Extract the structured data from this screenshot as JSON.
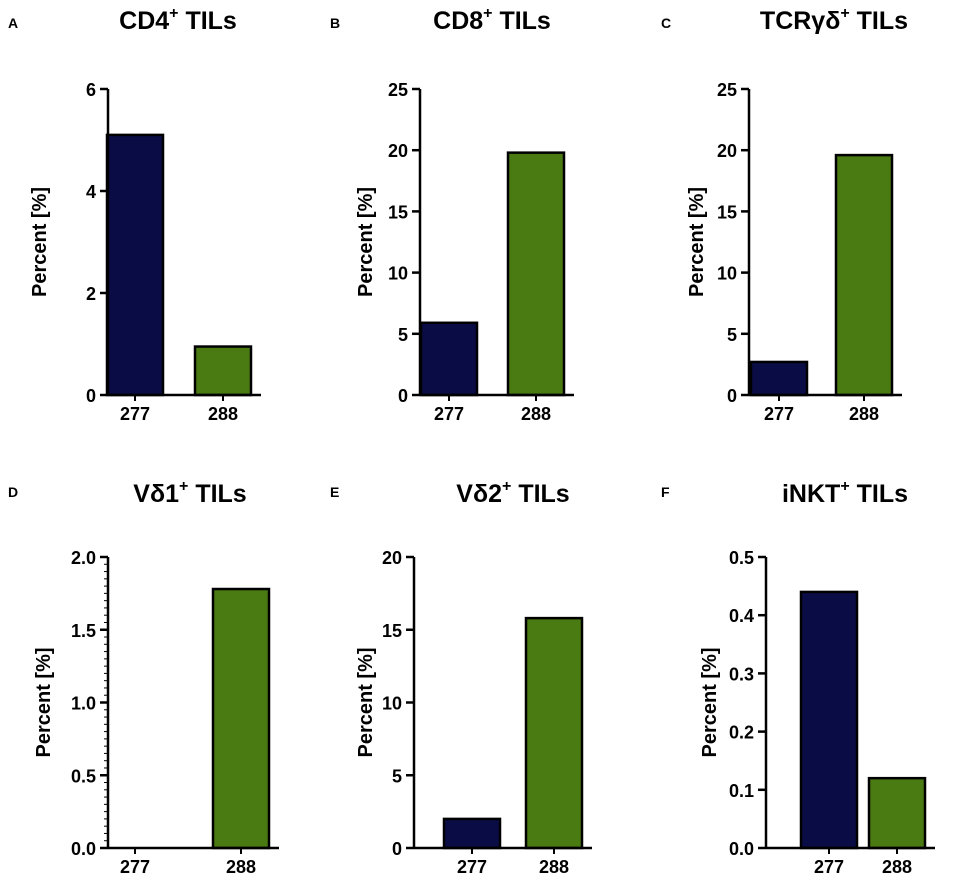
{
  "figure": {
    "background": "#ffffff"
  },
  "colors": {
    "277": "#0a0c45",
    "288": "#4a7a12"
  },
  "chart_data": [
    {
      "panel": "A",
      "type": "bar",
      "title_main": "CD4",
      "title_sup": "+",
      "title_tail": " TILs",
      "ylabel": "Percent [%]",
      "categories": [
        "277",
        "288"
      ],
      "values": [
        5.1,
        0.95
      ],
      "ylim": [
        0,
        6
      ],
      "major_ticks": [
        0,
        2,
        4,
        6
      ],
      "tick_labels": [
        "0",
        "2",
        "4",
        "6"
      ],
      "minor_tick_count": 0
    },
    {
      "panel": "B",
      "type": "bar",
      "title_main": "CD8",
      "title_sup": "+",
      "title_tail": " TILs",
      "ylabel": "Percent [%]",
      "categories": [
        "277",
        "288"
      ],
      "values": [
        5.9,
        19.8
      ],
      "ylim": [
        0,
        25
      ],
      "major_ticks": [
        0,
        5,
        10,
        15,
        20,
        25
      ],
      "tick_labels": [
        "0",
        "5",
        "10",
        "15",
        "20",
        "25"
      ],
      "minor_tick_count": 0
    },
    {
      "panel": "C",
      "type": "bar",
      "title_main": "TCRγδ",
      "title_sup": "+",
      "title_tail": " TILs",
      "ylabel": "Percent [%]",
      "categories": [
        "277",
        "288"
      ],
      "values": [
        2.7,
        19.6
      ],
      "ylim": [
        0,
        25
      ],
      "major_ticks": [
        0,
        5,
        10,
        15,
        20,
        25
      ],
      "tick_labels": [
        "0",
        "5",
        "10",
        "15",
        "20",
        "25"
      ],
      "minor_tick_count": 0
    },
    {
      "panel": "D",
      "type": "bar",
      "title_main": "Vδ1",
      "title_sup": "+",
      "title_tail": " TILs",
      "ylabel": "Percent [%]",
      "categories": [
        "277",
        "288"
      ],
      "values": [
        0,
        1.78
      ],
      "ylim": [
        0,
        2.0
      ],
      "major_ticks": [
        0,
        0.5,
        1.0,
        1.5,
        2.0
      ],
      "tick_labels": [
        "0.0",
        "0.5",
        "1.0",
        "1.5",
        "2.0"
      ],
      "minor_tick_count": 9
    },
    {
      "panel": "E",
      "type": "bar",
      "title_main": "Vδ2",
      "title_sup": "+",
      "title_tail": " TILs",
      "ylabel": "Percent [%]",
      "categories": [
        "277",
        "288"
      ],
      "values": [
        2.0,
        15.8
      ],
      "ylim": [
        0,
        20
      ],
      "major_ticks": [
        0,
        5,
        10,
        15,
        20
      ],
      "tick_labels": [
        "0",
        "5",
        "10",
        "15",
        "20"
      ],
      "minor_tick_count": 0
    },
    {
      "panel": "F",
      "type": "bar",
      "title_main": "iNKT",
      "title_sup": "+",
      "title_tail": " TILs",
      "ylabel": "Percent [%]",
      "categories": [
        "277",
        "288"
      ],
      "values": [
        0.44,
        0.12
      ],
      "ylim": [
        0,
        0.5
      ],
      "major_ticks": [
        0,
        0.1,
        0.2,
        0.3,
        0.4,
        0.5
      ],
      "tick_labels": [
        "0.0",
        "0.1",
        "0.2",
        "0.3",
        "0.4",
        "0.5"
      ],
      "minor_tick_count": 0
    }
  ]
}
